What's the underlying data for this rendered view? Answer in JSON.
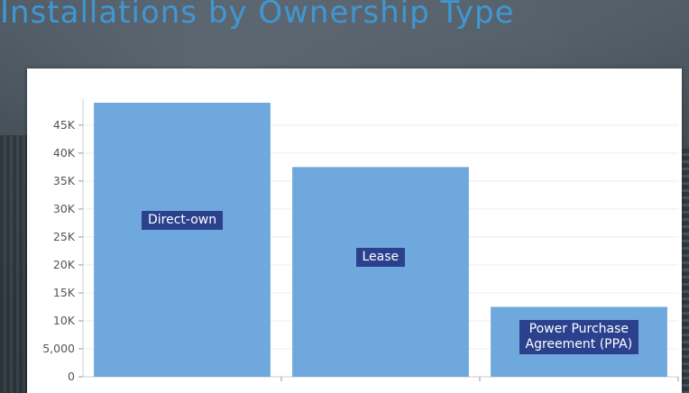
{
  "page": {
    "title": "Installations by Ownership Type"
  },
  "chart_data": {
    "type": "bar",
    "title": "Installations by Ownership Type",
    "categories": [
      "Direct-own",
      "Lease",
      "Power Purchase Agreement (PPA)"
    ],
    "category_labels": [
      [
        "Direct-own"
      ],
      [
        "Lease"
      ],
      [
        "Power Purchase",
        "Agreement (PPA)"
      ]
    ],
    "values": [
      49000,
      37500,
      12500
    ],
    "ylim": [
      0,
      49000
    ],
    "yticks": [
      0,
      5000,
      10000,
      15000,
      20000,
      25000,
      30000,
      35000,
      40000,
      45000
    ],
    "ytick_labels": [
      "0",
      "5,000",
      "10K",
      "15K",
      "20K",
      "25K",
      "30K",
      "35K",
      "40K",
      "45K"
    ],
    "grid": true,
    "legend": "none",
    "colors": {
      "bar": "#6fa8dc",
      "label_bg": "#2b418e",
      "grid": "#ececec",
      "axis": "#cccccc"
    }
  }
}
